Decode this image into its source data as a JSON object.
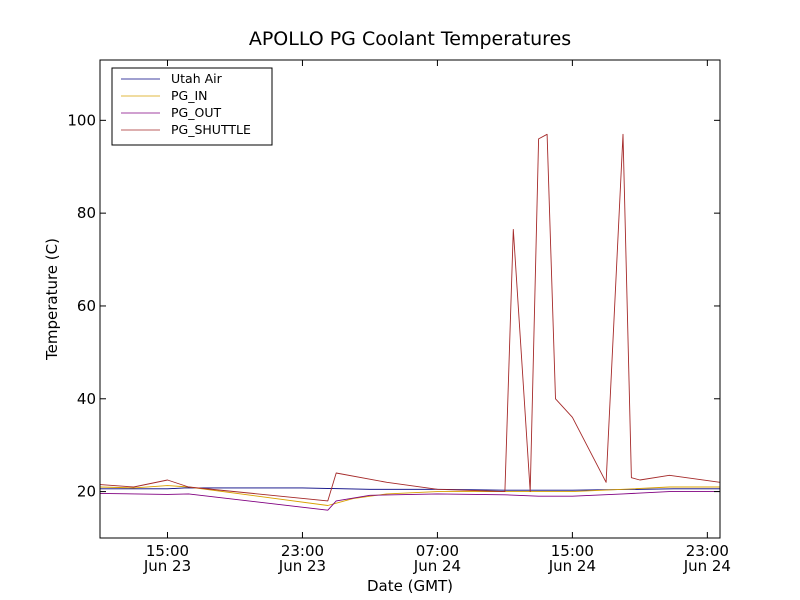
{
  "chart_data": {
    "type": "line",
    "title": "APOLLO PG Coolant Temperatures",
    "xlabel": "Date (GMT)",
    "ylabel": "Temperature (C)",
    "xlim": [
      "2010-06-23 11:00",
      "2010-06-24 23:45"
    ],
    "ylim": [
      10,
      113
    ],
    "yticks": [
      20,
      40,
      60,
      80,
      100
    ],
    "xticks": [
      {
        "at": "2010-06-23 15:00",
        "time": "15:00",
        "date": "Jun 23"
      },
      {
        "at": "2010-06-23 23:00",
        "time": "23:00",
        "date": "Jun 23"
      },
      {
        "at": "2010-06-24 07:00",
        "time": "07:00",
        "date": "Jun 24"
      },
      {
        "at": "2010-06-24 15:00",
        "time": "15:00",
        "date": "Jun 24"
      },
      {
        "at": "2010-06-24 23:00",
        "time": "23:00",
        "date": "Jun 24"
      }
    ],
    "grid": false,
    "legend_position": "top-left",
    "series": [
      {
        "name": "Utah Air",
        "color": "#000080",
        "x": [
          "2010-06-23 11:00",
          "2010-06-23 15:00",
          "2010-06-23 16:00",
          "2010-06-23 23:00",
          "2010-06-24 03:00",
          "2010-06-24 07:00",
          "2010-06-24 11:00",
          "2010-06-24 15:00",
          "2010-06-24 19:00",
          "2010-06-24 21:00",
          "2010-06-24 23:45"
        ],
        "y": [
          20.6,
          20.6,
          20.8,
          20.8,
          20.5,
          20.5,
          20.3,
          20.3,
          20.5,
          20.6,
          20.6
        ]
      },
      {
        "name": "PG_IN",
        "color": "#d8a000",
        "x": [
          "2010-06-23 11:00",
          "2010-06-23 13:00",
          "2010-06-23 15:00",
          "2010-06-23 16:15",
          "2010-06-23 24:30",
          "2010-06-24 01:00",
          "2010-06-24 02:00",
          "2010-06-24 04:00",
          "2010-06-24 07:00",
          "2010-06-24 11:00",
          "2010-06-24 15:00",
          "2010-06-24 18:00",
          "2010-06-24 20:45",
          "2010-06-24 23:45"
        ],
        "y": [
          21.0,
          20.8,
          21.3,
          21.0,
          17.0,
          17.5,
          18.5,
          19.5,
          20.0,
          20.0,
          20.0,
          20.5,
          21.0,
          21.0
        ]
      },
      {
        "name": "PG_OUT",
        "color": "#800080",
        "x": [
          "2010-06-23 11:00",
          "2010-06-23 15:00",
          "2010-06-23 16:15",
          "2010-06-23 24:30",
          "2010-06-24 01:00",
          "2010-06-24 03:00",
          "2010-06-24 07:00",
          "2010-06-24 11:00",
          "2010-06-24 13:00",
          "2010-06-24 15:00",
          "2010-06-24 18:00",
          "2010-06-24 20:45",
          "2010-06-24 23:45"
        ],
        "y": [
          19.6,
          19.4,
          19.5,
          16.0,
          18.0,
          19.2,
          19.5,
          19.3,
          19.0,
          19.0,
          19.5,
          20.0,
          20.0
        ]
      },
      {
        "name": "PG_SHUTTLE",
        "color": "#a52a2a",
        "x": [
          "2010-06-23 11:00",
          "2010-06-23 13:00",
          "2010-06-23 15:00",
          "2010-06-23 16:15",
          "2010-06-23 24:30",
          "2010-06-24 01:00",
          "2010-06-24 04:00",
          "2010-06-24 07:00",
          "2010-06-24 11:00",
          "2010-06-24 11:30",
          "2010-06-24 12:30",
          "2010-06-24 13:00",
          "2010-06-24 13:30",
          "2010-06-24 14:00",
          "2010-06-24 15:00",
          "2010-06-24 17:00",
          "2010-06-24 18:00",
          "2010-06-24 18:30",
          "2010-06-24 19:00",
          "2010-06-24 20:45",
          "2010-06-24 23:45"
        ],
        "y": [
          21.5,
          21.0,
          22.5,
          21.0,
          18.0,
          24.0,
          22.0,
          20.5,
          20.0,
          76.5,
          20.0,
          96.0,
          97.0,
          40.0,
          36.0,
          22.0,
          97.0,
          23.0,
          22.5,
          23.5,
          22.0
        ]
      }
    ]
  }
}
